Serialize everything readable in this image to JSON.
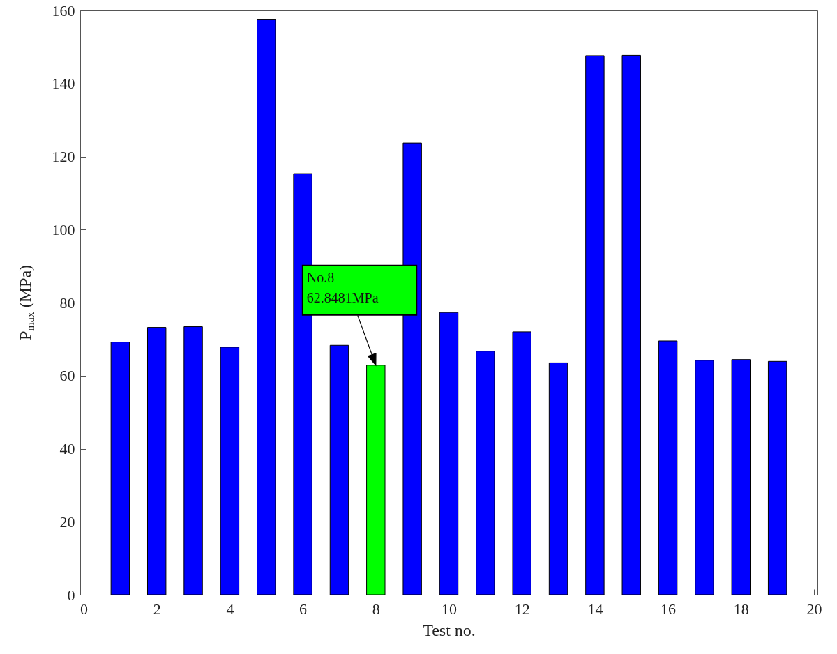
{
  "chart_data": {
    "type": "bar",
    "xlabel": "Test no.",
    "ylabel": "P$_{max}$ (MPa)",
    "x": [
      1,
      2,
      3,
      4,
      5,
      6,
      7,
      8,
      9,
      10,
      11,
      12,
      13,
      14,
      15,
      16,
      17,
      18,
      19
    ],
    "values": [
      69.2,
      73.2,
      73.4,
      67.8,
      157.6,
      115.3,
      68.3,
      62.8481,
      123.7,
      77.3,
      66.7,
      72.0,
      63.5,
      147.6,
      147.7,
      69.5,
      64.2,
      64.4,
      63.9
    ],
    "colors": [
      "#0000ff",
      "#0000ff",
      "#0000ff",
      "#0000ff",
      "#0000ff",
      "#0000ff",
      "#0000ff",
      "#00ff00",
      "#0000ff",
      "#0000ff",
      "#0000ff",
      "#0000ff",
      "#0000ff",
      "#0000ff",
      "#0000ff",
      "#0000ff",
      "#0000ff",
      "#0000ff",
      "#0000ff"
    ],
    "xlim": [
      0,
      20
    ],
    "xticks": [
      0,
      2,
      4,
      6,
      8,
      10,
      12,
      14,
      16,
      18,
      20
    ],
    "ylim": [
      0,
      160
    ],
    "yticks": [
      0,
      20,
      40,
      60,
      80,
      100,
      120,
      140,
      160
    ],
    "annotations": [
      {
        "text": "No.8\n62.8481MPa",
        "x": 8,
        "y": 62.8481
      }
    ]
  }
}
